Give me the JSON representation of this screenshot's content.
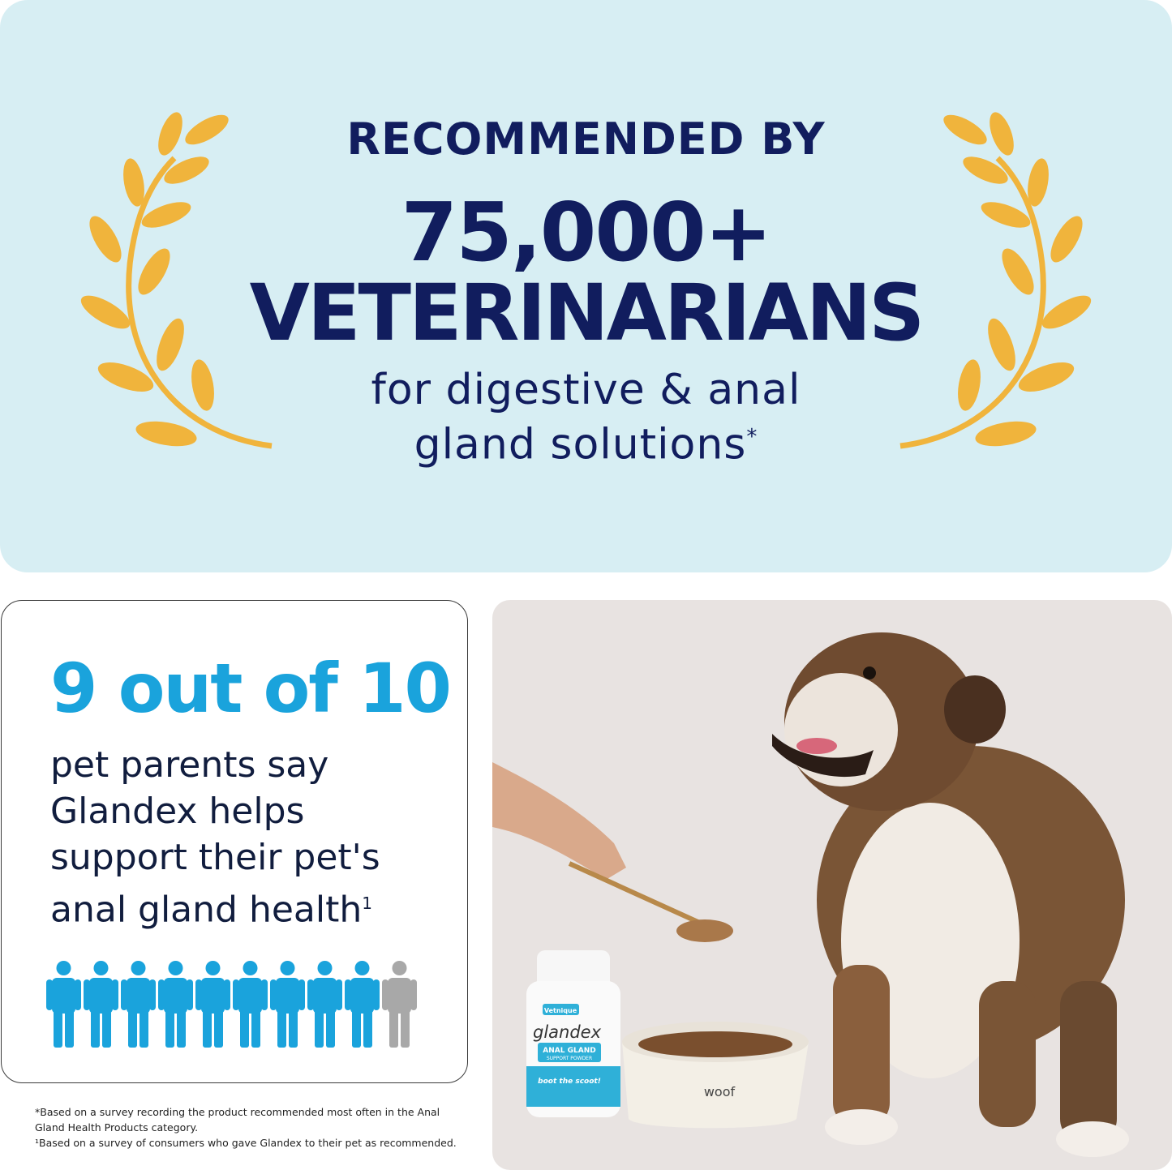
{
  "banner": {
    "line1": "RECOMMENDED BY",
    "line2": "75,000+",
    "line3": "VETERINARIANS",
    "subtitle_line1": "for digestive & anal",
    "subtitle_line2": "gland solutions",
    "subtitle_mark": "*",
    "laurel_icon": "laurel-branch-icon",
    "laurel_color": "#f0b43c",
    "background": "#d7eef3",
    "text_color": "#111d5e"
  },
  "stat_card": {
    "headline": "9 out of 10",
    "body_lines": [
      "pet parents say",
      "Glandex helps",
      "support their pet's",
      "anal gland health"
    ],
    "body_mark": "1",
    "people_icon": "person-icon",
    "people_highlighted": 9,
    "people_total": 10,
    "accent": "#1aa3dc",
    "muted": "#a8a8a8"
  },
  "footnotes": [
    "*Based on a survey recording the product recommended most often in the Anal Gland Health Products category.",
    "¹Based on a survey of consumers who gave Glandex to their pet as recommended."
  ],
  "photo": {
    "bottle_brand": "Vetnique",
    "bottle_name": "glandex",
    "bottle_label1": "ANAL GLAND",
    "bottle_label2": "SUPPORT POWDER",
    "bottle_tagline": "boot the scoot!",
    "bowl_text": "woof"
  }
}
